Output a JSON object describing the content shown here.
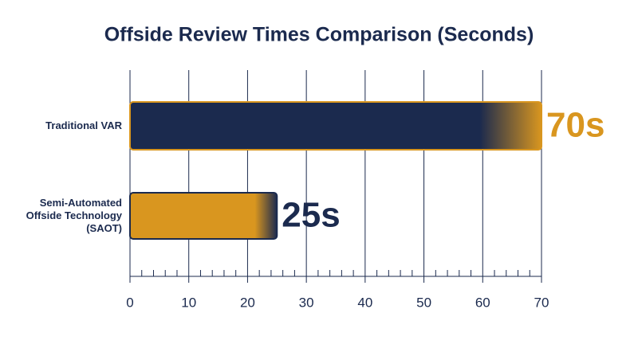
{
  "chart_data": {
    "type": "bar",
    "orientation": "horizontal",
    "title": "Offside Review Times Comparison (Seconds)",
    "categories": [
      "Traditional VAR",
      "Semi-Automated Offside Technology (SAOT)"
    ],
    "values": [
      70,
      25
    ],
    "value_labels": [
      "70s",
      "25s"
    ],
    "colors": [
      "#1b2a4e",
      "#d9961f"
    ],
    "xlim": [
      0,
      70
    ],
    "xticks": [
      0,
      10,
      20,
      30,
      40,
      50,
      60,
      70
    ],
    "xminorticks": [
      2,
      4,
      6,
      8,
      12,
      14,
      16,
      18,
      22,
      24,
      26,
      28,
      32,
      34,
      36,
      38,
      42,
      44,
      46,
      48,
      52,
      54,
      56,
      58,
      62,
      64,
      66,
      68
    ],
    "grid": true
  }
}
